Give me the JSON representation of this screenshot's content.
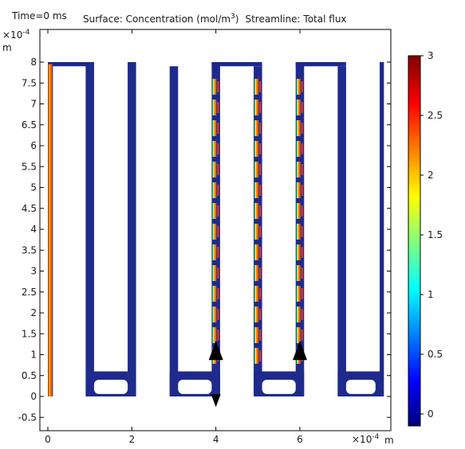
{
  "chart_data": {
    "type": "heatmap",
    "time_label": "Time=0 ms",
    "title_surface_prefix": "Surface: Concentration (mol/m",
    "title_surface_exp": "3",
    "title_surface_suffix": ")",
    "title_streamline": "Streamline: Total flux",
    "x_unit": "m",
    "y_unit": "m",
    "x_multiplier_base": "×10",
    "x_multiplier_exp": "-4",
    "y_multiplier_base": "×10",
    "y_multiplier_exp": "-4",
    "xlim": [
      -0.2,
      8.4
    ],
    "ylim": [
      -0.8,
      8.5
    ],
    "x_ticks": [
      "0",
      "2",
      "4",
      "6"
    ],
    "x_tick_values": [
      0,
      2,
      4,
      6
    ],
    "y_ticks": [
      "-0.5",
      "0",
      "0.5",
      "1",
      "1.5",
      "2",
      "2.5",
      "3",
      "3.5",
      "4",
      "4.5",
      "5",
      "5.5",
      "6",
      "6.5",
      "7",
      "7.5",
      "8"
    ],
    "y_tick_values": [
      -0.5,
      0,
      0.5,
      1,
      1.5,
      2,
      2.5,
      3,
      3.5,
      4,
      4.5,
      5,
      5.5,
      6,
      6.5,
      7,
      7.5,
      8
    ],
    "colorbar": {
      "range": [
        -0.1,
        3
      ],
      "ticks": [
        "0",
        "0.5",
        "1",
        "1.5",
        "2",
        "2.5",
        "3"
      ],
      "tick_values": [
        0,
        0.5,
        1,
        1.5,
        2,
        2.5,
        3
      ],
      "colormap": [
        "#00007f",
        "#0000ff",
        "#00ffff",
        "#ffff00",
        "#ff0000",
        "#7f0000"
      ]
    },
    "background_color": "#1e2a8c",
    "geometry_units": "1e-4 m",
    "channels": {
      "vertical_channels": [
        {
          "x": [
            0,
            0.12
          ],
          "y": [
            0,
            8
          ],
          "concentration": "high (≈2–2.5)"
        },
        {
          "x": [
            0.9,
            1.1
          ],
          "y": [
            0.6,
            8
          ]
        },
        {
          "x": [
            1.9,
            2.1
          ],
          "y": [
            0.6,
            8
          ]
        },
        {
          "x": [
            2.9,
            3.1
          ],
          "y": [
            0,
            7.9
          ]
        },
        {
          "x": [
            3.9,
            4.1
          ],
          "y": [
            0,
            8
          ],
          "concentration": "periodic stripes"
        },
        {
          "x": [
            4.9,
            5.1
          ],
          "y": [
            0,
            7.9
          ],
          "concentration": "periodic stripes"
        },
        {
          "x": [
            5.9,
            6.1
          ],
          "y": [
            0,
            8
          ],
          "concentration": "periodic stripes"
        },
        {
          "x": [
            6.9,
            7.1
          ],
          "y": [
            0,
            7.9
          ]
        },
        {
          "x": [
            7.9,
            8.0
          ],
          "y": [
            0.6,
            8
          ]
        }
      ],
      "top_connections": [
        [
          0,
          1.1
        ],
        [
          3.9,
          5.1
        ],
        [
          5.9,
          7.1
        ]
      ],
      "bottom_connections": [
        [
          0.9,
          2.1
        ],
        [
          2.9,
          4.1
        ],
        [
          4.9,
          6.1
        ],
        [
          6.9,
          8.0
        ]
      ]
    },
    "arrows": [
      {
        "x": 4.0,
        "y": 1.1,
        "direction": "up"
      },
      {
        "x": 4.0,
        "y": -0.1,
        "direction": "down"
      },
      {
        "x": 6.0,
        "y": 1.1,
        "direction": "up"
      }
    ]
  }
}
